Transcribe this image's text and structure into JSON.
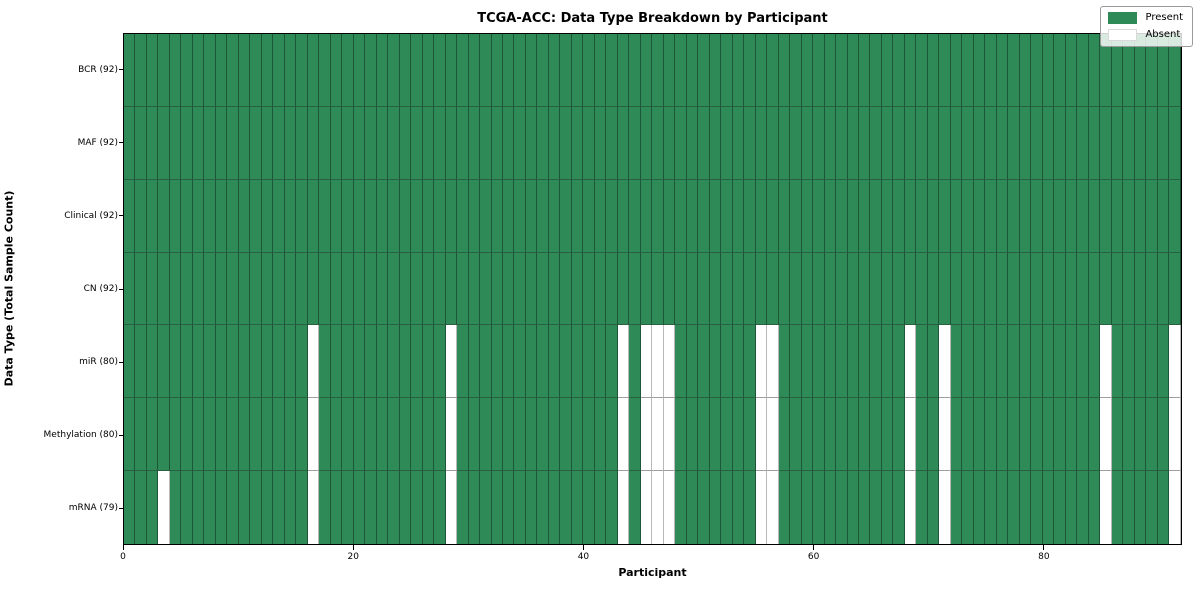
{
  "title": "TCGA-ACC: Data Type Breakdown by Participant",
  "xlabel": "Participant",
  "ylabel": "Data Type (Total Sample Count)",
  "legend": {
    "present_label": "Present",
    "absent_label": "Absent"
  },
  "colors": {
    "present": "#2e8b57",
    "absent": "#ffffff",
    "grid_on_present": "#1d5636",
    "grid_on_absent": "#b9b9b9",
    "axis": "#000000"
  },
  "chart_data": {
    "type": "heatmap",
    "title": "TCGA-ACC: Data Type Breakdown by Participant",
    "xlabel": "Participant",
    "ylabel": "Data Type (Total Sample Count)",
    "n_participants": 92,
    "x_range": [
      0,
      92
    ],
    "x_ticks": [
      0,
      20,
      40,
      60,
      80
    ],
    "legend_position": "upper right",
    "grid": true,
    "value_legend": [
      "Present",
      "Absent"
    ],
    "rows": [
      {
        "label": "BCR (92)",
        "data_type": "BCR",
        "present_count": 92,
        "absent_participants": []
      },
      {
        "label": "MAF (92)",
        "data_type": "MAF",
        "present_count": 92,
        "absent_participants": []
      },
      {
        "label": "Clinical (92)",
        "data_type": "Clinical",
        "present_count": 92,
        "absent_participants": []
      },
      {
        "label": "CN (92)",
        "data_type": "CN",
        "present_count": 92,
        "absent_participants": []
      },
      {
        "label": "miR (80)",
        "data_type": "miR",
        "present_count": 80,
        "absent_participants": [
          16,
          28,
          43,
          45,
          46,
          47,
          55,
          56,
          68,
          71,
          85,
          91
        ]
      },
      {
        "label": "Methylation (80)",
        "data_type": "Methylation",
        "present_count": 80,
        "absent_participants": [
          16,
          28,
          43,
          45,
          46,
          47,
          55,
          56,
          68,
          71,
          85,
          91
        ]
      },
      {
        "label": "mRNA (79)",
        "data_type": "mRNA",
        "present_count": 79,
        "absent_participants": [
          3,
          16,
          28,
          43,
          45,
          46,
          47,
          55,
          56,
          68,
          71,
          85,
          91
        ]
      }
    ]
  }
}
